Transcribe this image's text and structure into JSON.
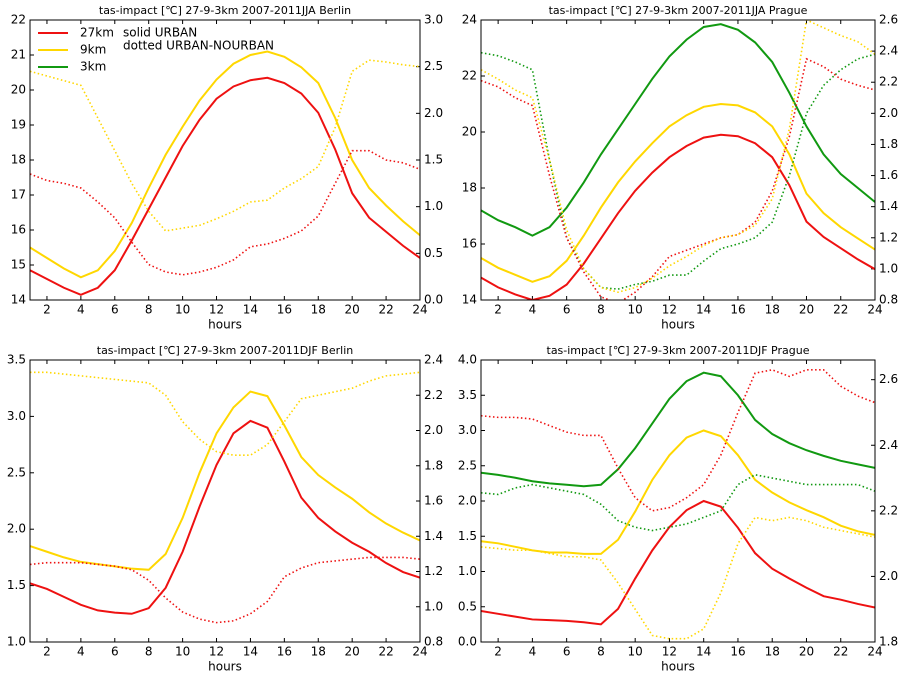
{
  "chart_data": [
    {
      "type": "line",
      "title": "tas-impact [℃] 27-9-3km 2007-2011JJA Berlin",
      "xlabel": "hours",
      "x": [
        1,
        2,
        3,
        4,
        5,
        6,
        7,
        8,
        9,
        10,
        11,
        12,
        13,
        14,
        15,
        16,
        17,
        18,
        19,
        20,
        21,
        22,
        23,
        24
      ],
      "xlim": [
        1,
        24
      ],
      "xticks": [
        2,
        4,
        6,
        8,
        10,
        12,
        14,
        16,
        18,
        20,
        22,
        24
      ],
      "ylim": [
        14,
        22
      ],
      "yticks": [
        14,
        15,
        16,
        17,
        18,
        19,
        20,
        21,
        22
      ],
      "y2lim": [
        0,
        3
      ],
      "y2ticks": [
        {
          "value": 0,
          "label": "0.0"
        },
        0.5,
        {
          "value": 1,
          "label": "1.0"
        },
        1.5,
        {
          "value": 2,
          "label": "2.0"
        },
        2.5,
        {
          "value": 3,
          "label": "3.0"
        }
      ],
      "legend": [
        {
          "name": "27km",
          "color": "#ee1111"
        },
        {
          "name": "9km",
          "color": "#ffd700"
        },
        {
          "name": "3km",
          "color": "#119911"
        }
      ],
      "annotations": [
        "solid URBAN",
        "dotted URBAN-NOURBAN"
      ],
      "series": [
        {
          "color": "#ee1111",
          "style": "solid",
          "values": [
            14.85,
            14.6,
            14.35,
            14.15,
            14.35,
            14.85,
            15.7,
            16.6,
            17.5,
            18.4,
            19.15,
            19.75,
            20.1,
            20.28,
            20.35,
            20.2,
            19.9,
            19.35,
            18.3,
            17.05,
            16.35,
            15.95,
            15.55,
            15.2
          ]
        },
        {
          "color": "#ffd700",
          "style": "solid",
          "values": [
            15.5,
            15.2,
            14.9,
            14.65,
            14.85,
            15.4,
            16.2,
            17.2,
            18.15,
            18.95,
            19.7,
            20.3,
            20.75,
            21.0,
            21.1,
            20.95,
            20.65,
            20.2,
            19.2,
            18.0,
            17.2,
            16.7,
            16.25,
            15.85
          ]
        },
        {
          "color": "#ee1111",
          "style": "dotted",
          "axis": "y2",
          "values": [
            1.35,
            1.28,
            1.25,
            1.2,
            1.05,
            0.88,
            0.62,
            0.38,
            0.3,
            0.27,
            0.3,
            0.35,
            0.43,
            0.57,
            0.6,
            0.66,
            0.74,
            0.9,
            1.25,
            1.6,
            1.6,
            1.5,
            1.47,
            1.4
          ]
        },
        {
          "color": "#ffd700",
          "style": "dotted",
          "axis": "y2",
          "values": [
            2.45,
            2.4,
            2.35,
            2.3,
            1.95,
            1.6,
            1.25,
            0.95,
            0.74,
            0.77,
            0.8,
            0.87,
            0.95,
            1.05,
            1.07,
            1.2,
            1.3,
            1.43,
            1.85,
            2.45,
            2.57,
            2.55,
            2.52,
            2.5
          ]
        }
      ]
    },
    {
      "type": "line",
      "title": "tas-impact [℃] 27-9-3km 2007-2011JJA Prague",
      "xlabel": "hours",
      "x": [
        1,
        2,
        3,
        4,
        5,
        6,
        7,
        8,
        9,
        10,
        11,
        12,
        13,
        14,
        15,
        16,
        17,
        18,
        19,
        20,
        21,
        22,
        23,
        24
      ],
      "xlim": [
        1,
        24
      ],
      "xticks": [
        2,
        4,
        6,
        8,
        10,
        12,
        14,
        16,
        18,
        20,
        22,
        24
      ],
      "ylim": [
        14,
        24
      ],
      "yticks": [
        14,
        16,
        18,
        20,
        22,
        24
      ],
      "y2lim": [
        0.8,
        2.6
      ],
      "y2ticks": [
        0.8,
        {
          "value": 1,
          "label": "1.0"
        },
        1.2,
        1.4,
        1.6,
        1.8,
        {
          "value": 2,
          "label": "2.0"
        },
        2.2,
        2.4,
        2.6
      ],
      "series": [
        {
          "color": "#119911",
          "style": "solid",
          "values": [
            17.2,
            16.85,
            16.6,
            16.3,
            16.6,
            17.3,
            18.2,
            19.2,
            20.1,
            21.0,
            21.9,
            22.7,
            23.3,
            23.75,
            23.85,
            23.65,
            23.2,
            22.5,
            21.4,
            20.2,
            19.2,
            18.5,
            18.0,
            17.5
          ]
        },
        {
          "color": "#ffd700",
          "style": "solid",
          "values": [
            15.5,
            15.15,
            14.9,
            14.65,
            14.85,
            15.4,
            16.3,
            17.3,
            18.2,
            18.95,
            19.6,
            20.2,
            20.6,
            20.9,
            21.0,
            20.95,
            20.7,
            20.2,
            19.2,
            17.8,
            17.1,
            16.6,
            16.2,
            15.8
          ]
        },
        {
          "color": "#ee1111",
          "style": "solid",
          "values": [
            14.8,
            14.45,
            14.2,
            14.0,
            14.15,
            14.55,
            15.3,
            16.2,
            17.1,
            17.9,
            18.55,
            19.1,
            19.5,
            19.8,
            19.9,
            19.85,
            19.6,
            19.1,
            18.1,
            16.8,
            16.25,
            15.85,
            15.45,
            15.1
          ]
        },
        {
          "color": "#119911",
          "style": "dotted",
          "axis": "y2",
          "values": [
            2.39,
            2.37,
            2.33,
            2.28,
            1.7,
            1.2,
            1.0,
            0.88,
            0.87,
            0.9,
            0.92,
            0.96,
            0.96,
            1.05,
            1.13,
            1.16,
            1.2,
            1.3,
            1.6,
            2.0,
            2.18,
            2.28,
            2.35,
            2.38
          ]
        },
        {
          "color": "#ee1111",
          "style": "dotted",
          "axis": "y2",
          "values": [
            2.21,
            2.17,
            2.1,
            2.05,
            1.6,
            1.2,
            0.98,
            0.82,
            0.78,
            0.85,
            0.95,
            1.08,
            1.12,
            1.16,
            1.2,
            1.22,
            1.3,
            1.5,
            1.85,
            2.35,
            2.3,
            2.22,
            2.18,
            2.15
          ]
        },
        {
          "color": "#ffd700",
          "style": "dotted",
          "axis": "y2",
          "values": [
            2.28,
            2.22,
            2.15,
            2.1,
            1.7,
            1.25,
            1.0,
            0.88,
            0.85,
            0.88,
            0.94,
            1.02,
            1.08,
            1.15,
            1.2,
            1.22,
            1.28,
            1.45,
            1.9,
            2.6,
            2.55,
            2.5,
            2.46,
            2.38
          ]
        }
      ]
    },
    {
      "type": "line",
      "title": "tas-impact [℃] 27-9-3km 2007-2011DJF Berlin",
      "xlabel": "hours",
      "x": [
        1,
        2,
        3,
        4,
        5,
        6,
        7,
        8,
        9,
        10,
        11,
        12,
        13,
        14,
        15,
        16,
        17,
        18,
        19,
        20,
        21,
        22,
        23,
        24
      ],
      "xlim": [
        1,
        24
      ],
      "xticks": [
        2,
        4,
        6,
        8,
        10,
        12,
        14,
        16,
        18,
        20,
        22,
        24
      ],
      "ylim": [
        1,
        3.5
      ],
      "yticks": [
        {
          "value": 1,
          "label": "1.0"
        },
        1.5,
        {
          "value": 2,
          "label": "2.0"
        },
        2.5,
        {
          "value": 3,
          "label": "3.0"
        },
        3.5
      ],
      "y2lim": [
        0.8,
        2.4
      ],
      "y2ticks": [
        0.8,
        {
          "value": 1,
          "label": "1.0"
        },
        1.2,
        1.4,
        1.6,
        1.8,
        {
          "value": 2,
          "label": "2.0"
        },
        2.2,
        2.4
      ],
      "series": [
        {
          "color": "#ee1111",
          "style": "solid",
          "values": [
            1.52,
            1.47,
            1.4,
            1.33,
            1.28,
            1.26,
            1.25,
            1.3,
            1.48,
            1.8,
            2.2,
            2.57,
            2.85,
            2.96,
            2.9,
            2.6,
            2.28,
            2.1,
            1.98,
            1.88,
            1.8,
            1.7,
            1.62,
            1.57
          ]
        },
        {
          "color": "#ffd700",
          "style": "solid",
          "values": [
            1.85,
            1.8,
            1.75,
            1.71,
            1.69,
            1.67,
            1.65,
            1.64,
            1.78,
            2.1,
            2.5,
            2.85,
            3.08,
            3.22,
            3.18,
            2.92,
            2.64,
            2.48,
            2.37,
            2.27,
            2.15,
            2.05,
            1.97,
            1.9
          ]
        },
        {
          "color": "#ee1111",
          "style": "dotted",
          "axis": "y2",
          "values": [
            1.24,
            1.25,
            1.25,
            1.25,
            1.24,
            1.23,
            1.21,
            1.15,
            1.05,
            0.97,
            0.93,
            0.91,
            0.92,
            0.96,
            1.03,
            1.17,
            1.22,
            1.25,
            1.26,
            1.27,
            1.28,
            1.28,
            1.28,
            1.27
          ]
        },
        {
          "color": "#ffd700",
          "style": "dotted",
          "axis": "y2",
          "values": [
            2.33,
            2.33,
            2.32,
            2.31,
            2.3,
            2.29,
            2.28,
            2.27,
            2.2,
            2.05,
            1.95,
            1.88,
            1.86,
            1.86,
            1.92,
            2.05,
            2.18,
            2.2,
            2.22,
            2.24,
            2.28,
            2.31,
            2.32,
            2.33
          ]
        }
      ]
    },
    {
      "type": "line",
      "title": "tas-impact [℃] 27-9-3km 2007-2011DJF Prague",
      "xlabel": "hours",
      "x": [
        1,
        2,
        3,
        4,
        5,
        6,
        7,
        8,
        9,
        10,
        11,
        12,
        13,
        14,
        15,
        16,
        17,
        18,
        19,
        20,
        21,
        22,
        23,
        24
      ],
      "xlim": [
        1,
        24
      ],
      "xticks": [
        2,
        4,
        6,
        8,
        10,
        12,
        14,
        16,
        18,
        20,
        22,
        24
      ],
      "ylim": [
        0,
        4
      ],
      "yticks": [
        {
          "value": 0,
          "label": "0.0"
        },
        0.5,
        {
          "value": 1,
          "label": "1.0"
        },
        1.5,
        {
          "value": 2,
          "label": "2.0"
        },
        2.5,
        {
          "value": 3,
          "label": "3.0"
        },
        3.5,
        {
          "value": 4,
          "label": "4.0"
        }
      ],
      "y2lim": [
        1.8,
        2.66
      ],
      "y2ticks": [
        1.8,
        {
          "value": 2,
          "label": "2.0"
        },
        2.2,
        2.4,
        2.6
      ],
      "series": [
        {
          "color": "#119911",
          "style": "solid",
          "values": [
            2.4,
            2.37,
            2.33,
            2.28,
            2.25,
            2.23,
            2.21,
            2.23,
            2.45,
            2.75,
            3.1,
            3.45,
            3.7,
            3.82,
            3.77,
            3.5,
            3.15,
            2.95,
            2.82,
            2.72,
            2.64,
            2.57,
            2.52,
            2.47
          ]
        },
        {
          "color": "#ffd700",
          "style": "solid",
          "values": [
            1.43,
            1.4,
            1.35,
            1.3,
            1.27,
            1.27,
            1.25,
            1.25,
            1.45,
            1.85,
            2.3,
            2.65,
            2.9,
            3.0,
            2.92,
            2.65,
            2.3,
            2.12,
            1.98,
            1.87,
            1.77,
            1.65,
            1.57,
            1.52
          ]
        },
        {
          "color": "#ee1111",
          "style": "solid",
          "values": [
            0.44,
            0.4,
            0.36,
            0.32,
            0.31,
            0.3,
            0.28,
            0.25,
            0.47,
            0.9,
            1.3,
            1.63,
            1.87,
            2.0,
            1.92,
            1.62,
            1.26,
            1.04,
            0.9,
            0.77,
            0.65,
            0.6,
            0.54,
            0.49
          ]
        },
        {
          "color": "#ee1111",
          "style": "dotted",
          "axis": "y2",
          "values": [
            2.49,
            2.485,
            2.485,
            2.48,
            2.46,
            2.44,
            2.43,
            2.43,
            2.33,
            2.24,
            2.2,
            2.21,
            2.24,
            2.28,
            2.37,
            2.5,
            2.62,
            2.63,
            2.61,
            2.63,
            2.63,
            2.58,
            2.55,
            2.53
          ]
        },
        {
          "color": "#119911",
          "style": "dotted",
          "axis": "y2",
          "values": [
            2.255,
            2.25,
            2.27,
            2.28,
            2.27,
            2.26,
            2.25,
            2.22,
            2.17,
            2.15,
            2.14,
            2.15,
            2.16,
            2.18,
            2.2,
            2.28,
            2.31,
            2.3,
            2.29,
            2.28,
            2.28,
            2.28,
            2.28,
            2.26
          ]
        },
        {
          "color": "#ffd700",
          "style": "dotted",
          "axis": "y2",
          "values": [
            2.09,
            2.085,
            2.08,
            2.08,
            2.07,
            2.06,
            2.06,
            2.05,
            1.98,
            1.9,
            1.82,
            1.81,
            1.81,
            1.84,
            1.95,
            2.1,
            2.18,
            2.17,
            2.18,
            2.17,
            2.15,
            2.14,
            2.13,
            2.12
          ]
        }
      ]
    }
  ]
}
